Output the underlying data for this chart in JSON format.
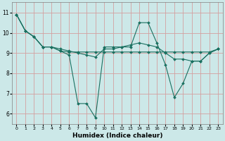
{
  "xlabel": "Humidex (Indice chaleur)",
  "bg_color": "#cce8e8",
  "plot_bg_color": "#cce8e8",
  "line_color": "#1a7060",
  "grid_color": "#d4a0a0",
  "ylim": [
    5.5,
    11.5
  ],
  "xlim": [
    -0.5,
    23.5
  ],
  "yticks": [
    6,
    7,
    8,
    9,
    10,
    11
  ],
  "xticks": [
    0,
    1,
    2,
    3,
    4,
    5,
    6,
    7,
    8,
    9,
    10,
    11,
    12,
    13,
    14,
    15,
    16,
    17,
    18,
    19,
    20,
    21,
    22,
    23
  ],
  "series": [
    [
      10.9,
      10.1,
      9.8,
      9.3,
      9.3,
      9.1,
      8.9,
      6.5,
      6.5,
      5.8,
      9.3,
      9.3,
      9.3,
      9.3,
      10.5,
      10.5,
      9.5,
      8.4,
      6.8,
      7.5,
      8.6,
      8.6,
      9.0,
      9.2
    ],
    [
      10.9,
      10.1,
      9.8,
      9.3,
      9.3,
      9.1,
      9.05,
      9.05,
      9.05,
      9.05,
      9.05,
      9.05,
      9.05,
      9.05,
      9.05,
      9.05,
      9.05,
      9.05,
      9.05,
      9.05,
      9.05,
      9.05,
      9.05,
      9.2
    ],
    [
      10.9,
      10.1,
      9.8,
      9.3,
      9.3,
      9.2,
      9.1,
      9.0,
      8.9,
      8.8,
      9.2,
      9.2,
      9.3,
      9.4,
      9.5,
      9.4,
      9.3,
      9.0,
      8.7,
      8.7,
      8.6,
      8.6,
      9.0,
      9.2
    ]
  ]
}
